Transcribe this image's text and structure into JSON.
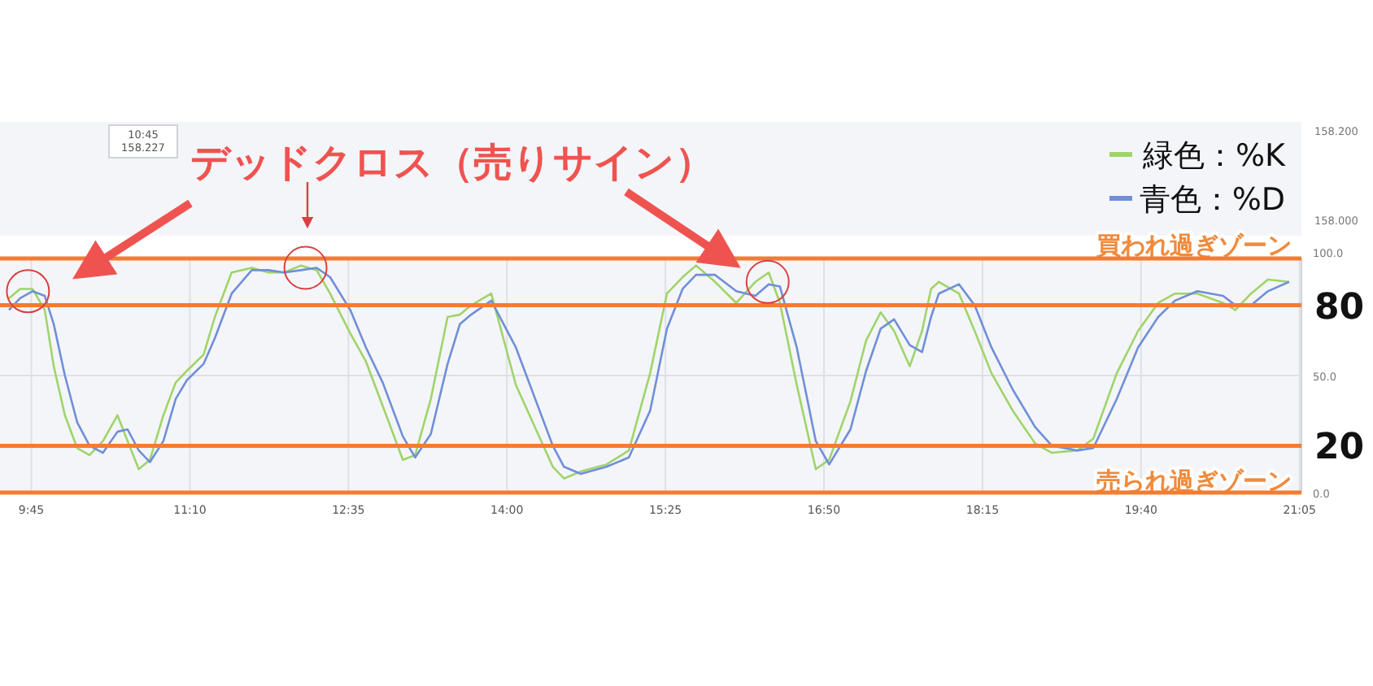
{
  "chart_data": {
    "type": "line",
    "title": "デッドクロス（売りサイン）",
    "x": [
      9.55,
      9.65,
      9.76,
      9.87,
      9.95,
      10.05,
      10.16,
      10.27,
      10.39,
      10.52,
      10.61,
      10.71,
      10.81,
      10.93,
      11.04,
      11.14,
      11.29,
      11.39,
      11.54,
      11.72,
      11.87,
      12.01,
      12.16,
      12.3,
      12.42,
      12.6,
      12.74,
      12.89,
      13.07,
      13.18,
      13.32,
      13.47,
      13.58,
      13.68,
      13.86,
      14.08,
      14.41,
      14.51,
      14.66,
      14.89,
      15.09,
      15.28,
      15.43,
      15.57,
      15.69,
      15.86,
      16.05,
      16.22,
      16.34,
      16.44,
      16.59,
      16.76,
      16.88,
      17.07,
      17.21,
      17.34,
      17.46,
      17.6,
      17.71,
      17.79,
      17.86,
      18.04,
      18.18,
      18.33,
      18.52,
      18.72,
      18.87,
      19.1,
      19.24,
      19.45,
      19.64,
      19.82,
      19.97,
      20.17,
      20.4,
      20.51,
      20.65,
      20.8,
      20.99
    ],
    "series": [
      {
        "name": "緑色：%K",
        "color": "#9fd46a",
        "values": [
          83,
          87,
          87,
          78,
          54,
          33,
          19,
          16,
          22,
          33,
          22,
          10,
          14,
          33,
          47,
          52,
          59,
          75,
          94,
          96,
          94,
          94,
          97,
          95,
          85,
          68,
          56,
          37,
          14,
          16,
          40,
          75,
          76,
          80,
          85,
          46,
          11,
          6,
          9,
          12,
          18,
          51,
          85,
          92,
          97,
          90,
          81,
          90,
          94,
          81,
          46,
          10,
          14,
          39,
          65,
          77,
          69,
          54,
          69,
          87,
          90,
          85,
          69,
          51,
          35,
          21,
          17,
          18,
          23,
          51,
          69,
          81,
          85,
          85,
          81,
          78,
          85,
          91,
          90
        ]
      },
      {
        "name": "青色：%D",
        "color": "#6f8fd8",
        "values": [
          78,
          83,
          86,
          84,
          72,
          50,
          30,
          20,
          17,
          26,
          27,
          18,
          13,
          22,
          40,
          48,
          55,
          66,
          85,
          95,
          95,
          94,
          95,
          96,
          92,
          78,
          62,
          47,
          24,
          15,
          25,
          55,
          72,
          76,
          82,
          62,
          20,
          11,
          8,
          11,
          15,
          35,
          70,
          87,
          93,
          93,
          86,
          84,
          89,
          88,
          62,
          22,
          12,
          27,
          52,
          70,
          74,
          63,
          60,
          75,
          85,
          89,
          80,
          62,
          44,
          28,
          20,
          18,
          19,
          40,
          62,
          75,
          82,
          86,
          84,
          80,
          80,
          86,
          90
        ]
      }
    ],
    "xlim": [
      9.47,
      21.1
    ],
    "xticks": [
      {
        "value": 9.75,
        "label": "9:45"
      },
      {
        "value": 11.1667,
        "label": "11:10"
      },
      {
        "value": 12.5833,
        "label": "12:35"
      },
      {
        "value": 14,
        "label": "14:00"
      },
      {
        "value": 15.4167,
        "label": "15:25"
      },
      {
        "value": 16.8333,
        "label": "16:50"
      },
      {
        "value": 18.25,
        "label": "18:15"
      },
      {
        "value": 19.6667,
        "label": "19:40"
      },
      {
        "value": 21.0833,
        "label": "21:05"
      }
    ],
    "ylim": [
      0,
      100
    ],
    "yticks": [
      {
        "value": 0,
        "label": "0.0"
      },
      {
        "value": 50,
        "label": "50.0"
      },
      {
        "value": 100,
        "label": "100.0"
      }
    ],
    "grid": true,
    "legend": "top right",
    "marker": "none",
    "line_style": "solid",
    "ref_lines": [
      {
        "axis": "y",
        "value": 100,
        "label": null,
        "color": "#f47b30"
      },
      {
        "axis": "y",
        "value": 80,
        "label": "80",
        "color": "#f47b30"
      },
      {
        "axis": "y",
        "value": 20,
        "label": "20",
        "color": "#f47b30"
      },
      {
        "axis": "y",
        "value": 0,
        "label": null,
        "color": "#f47b30"
      }
    ],
    "annotations": [
      "10:45 158.227",
      "158.200",
      "158.000",
      "買われ過ぎゾーン",
      "売られ過ぎゾーン"
    ]
  }
}
